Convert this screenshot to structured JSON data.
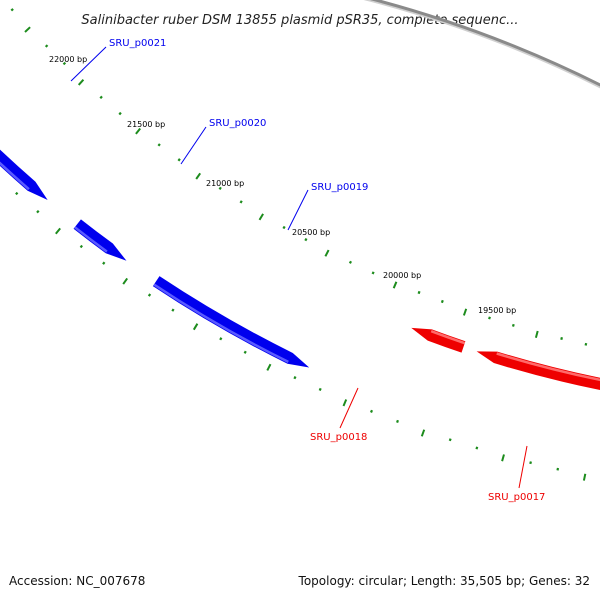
{
  "title": "Salinibacter ruber DSM 13855 plasmid pSR35, complete sequenc...",
  "footer": {
    "accession": "Accession: NC_007678",
    "topology": "Topology: circular; Length: 35,505 bp; Genes: 32"
  },
  "colors": {
    "forward": "#0000ee",
    "forward_light": "#5a5aff",
    "reverse": "#ee0000",
    "reverse_light": "#ff6a6a",
    "backbone": "#8a8a8a",
    "ticks": "#1d8c1d"
  },
  "tick_labels": [
    "22000 bp",
    "21500 bp",
    "21000 bp",
    "20500 bp",
    "20000 bp",
    "19500 bp"
  ],
  "genes": [
    {
      "name": "SRU_p0021",
      "strand": "forward"
    },
    {
      "name": "SRU_p0020",
      "strand": "forward"
    },
    {
      "name": "SRU_p0019",
      "strand": "forward"
    },
    {
      "name": "SRU_p0018",
      "strand": "reverse"
    },
    {
      "name": "SRU_p0017",
      "strand": "reverse"
    }
  ]
}
